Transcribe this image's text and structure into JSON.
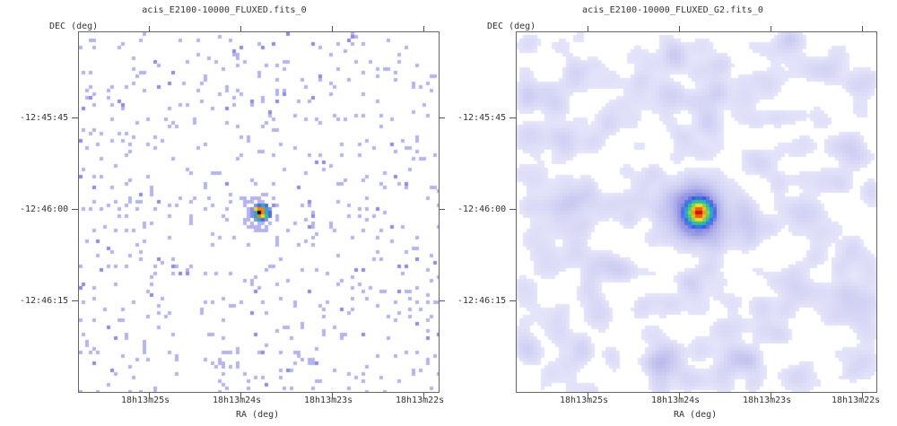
{
  "panels": [
    {
      "title": "acis_E2100-10000_FLUXED.fits_0",
      "y_axis_label": "DEC (deg)",
      "x_axis_label": "RA (deg)",
      "y_ticks": [
        "-12:45:45",
        "-12:46:00",
        "-12:46:15"
      ],
      "x_ticks": [
        "18h13m25s",
        "18h13m24s",
        "18h13m23s",
        "18h13m22s"
      ],
      "image_style": "sparse-pixels"
    },
    {
      "title": "acis_E2100-10000_FLUXED_G2.fits_0",
      "y_axis_label": "DEC (deg)",
      "x_axis_label": "RA (deg)",
      "y_ticks": [
        "-12:45:45",
        "-12:46:00",
        "-12:46:15"
      ],
      "x_ticks": [
        "18h13m25s",
        "18h13m24s",
        "18h13m23s",
        "18h13m22s"
      ],
      "image_style": "gaussian-smoothed"
    }
  ],
  "colors": {
    "background_pixel": "#ffffff",
    "low_count": "#b4b4f0",
    "source_peak": "#d00000"
  }
}
